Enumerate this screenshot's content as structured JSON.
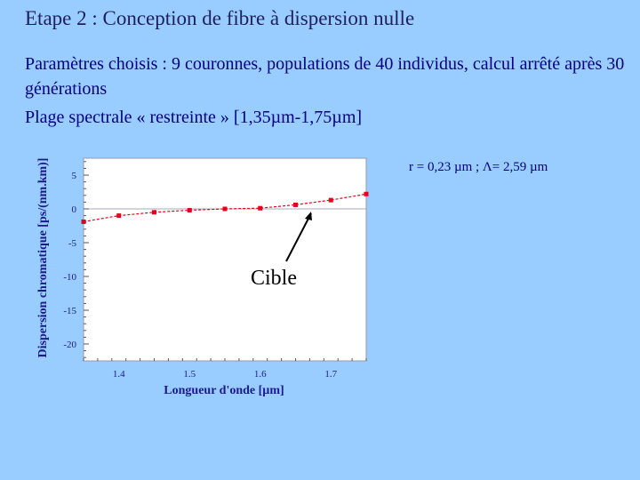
{
  "slide": {
    "title": "Etape 2 : Conception de fibre à dispersion nulle",
    "line1": "Paramètres choisis : 9 couronnes, populations de 40 individus, calcul arrêté après 30 générations",
    "line2": "Plage spectrale « restreinte » [1,35µm-1,75µm]",
    "note": "r = 0,23 µm ; Λ= 2,59 µm",
    "callout": "Cible"
  },
  "chart_data": {
    "type": "line",
    "title": "",
    "xlabel": "Longueur d'onde [µm]",
    "ylabel": "Dispersion chromatique [ps/(nm.km)]",
    "xlim": [
      1.35,
      1.75
    ],
    "ylim": [
      -22.5,
      7.5
    ],
    "xticks": [
      "1.4",
      "1.5",
      "1.6",
      "1.7"
    ],
    "yticks": [
      "5",
      "0",
      "-5",
      "-10",
      "-15",
      "-20"
    ],
    "reference_line_y": 0,
    "series": [
      {
        "color": "#e8001c",
        "x": [
          1.35,
          1.4,
          1.45,
          1.5,
          1.55,
          1.6,
          1.65,
          1.7,
          1.75
        ],
        "y": [
          -1.9,
          -1.0,
          -0.5,
          -0.2,
          0.0,
          0.1,
          0.6,
          1.3,
          2.2
        ]
      }
    ]
  }
}
